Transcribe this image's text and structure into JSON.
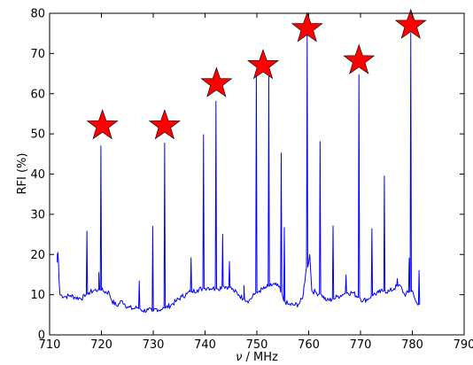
{
  "chart_data": {
    "type": "line",
    "xlabel_symbol": "ν",
    "xlabel_unit": " / MHz",
    "ylabel": "RFI (%)",
    "xlim": [
      710,
      790
    ],
    "ylim": [
      0,
      80
    ],
    "x_ticks": [
      710,
      720,
      730,
      740,
      750,
      760,
      770,
      780,
      790
    ],
    "y_ticks": [
      0,
      10,
      20,
      30,
      40,
      50,
      60,
      70,
      80
    ],
    "grid": false,
    "line_color": "#0000ff",
    "marker_color": "#ff0000",
    "baseline": [
      [
        711.5,
        20.0
      ],
      [
        711.8,
        14
      ],
      [
        712.0,
        10
      ],
      [
        713,
        9.5
      ],
      [
        714,
        9.8
      ],
      [
        715,
        9.3
      ],
      [
        716,
        9.1
      ],
      [
        716.8,
        9.5
      ],
      [
        717.5,
        10.5
      ],
      [
        718.5,
        11
      ],
      [
        719.5,
        11.3
      ],
      [
        720.5,
        10.8
      ],
      [
        721.5,
        10.5
      ],
      [
        722,
        8.5
      ],
      [
        723,
        7.2
      ],
      [
        724,
        8.5
      ],
      [
        725,
        7
      ],
      [
        726,
        6.5
      ],
      [
        727,
        6.8
      ],
      [
        728,
        6.0
      ],
      [
        729,
        6.2
      ],
      [
        729.8,
        5.8
      ],
      [
        730.5,
        6.5
      ],
      [
        731.5,
        6.3
      ],
      [
        732.5,
        6.8
      ],
      [
        733.5,
        7.5
      ],
      [
        734.5,
        8.5
      ],
      [
        735.5,
        9.5
      ],
      [
        736.5,
        10.2
      ],
      [
        737.5,
        10.8
      ],
      [
        738.5,
        11.2
      ],
      [
        739.5,
        11.5
      ],
      [
        740.5,
        11.8
      ],
      [
        741.5,
        11.6
      ],
      [
        742.5,
        11.4
      ],
      [
        743.5,
        12.2
      ],
      [
        744.5,
        12
      ],
      [
        745.5,
        11
      ],
      [
        746.5,
        10
      ],
      [
        747.5,
        9
      ],
      [
        748.5,
        8.5
      ],
      [
        749.5,
        10
      ],
      [
        750.5,
        11
      ],
      [
        751.5,
        11.5
      ],
      [
        752.5,
        12.2
      ],
      [
        753.5,
        12.5
      ],
      [
        754.5,
        11.5
      ],
      [
        755.2,
        8.5
      ],
      [
        756,
        7.6
      ],
      [
        757,
        7.4
      ],
      [
        758,
        7.6
      ],
      [
        758.8,
        9
      ],
      [
        759.4,
        15
      ],
      [
        760.2,
        20
      ],
      [
        760.6,
        11
      ],
      [
        761.5,
        10.5
      ],
      [
        762.5,
        10
      ],
      [
        763.5,
        8.5
      ],
      [
        764.5,
        8.8
      ],
      [
        765.5,
        9.5
      ],
      [
        766.5,
        10
      ],
      [
        767.5,
        10.5
      ],
      [
        768.5,
        10.5
      ],
      [
        769.5,
        9.5
      ],
      [
        770.5,
        8.5
      ],
      [
        771.5,
        9
      ],
      [
        772.5,
        10
      ],
      [
        773.5,
        10.5
      ],
      [
        774.5,
        11
      ],
      [
        775.5,
        10.8
      ],
      [
        776.5,
        11.5
      ],
      [
        777.5,
        12.5
      ],
      [
        778.5,
        10
      ],
      [
        779.2,
        10.5
      ],
      [
        780,
        11
      ],
      [
        780.5,
        9
      ],
      [
        781.0,
        7.5
      ]
    ],
    "spikes": [
      [
        711.6,
        20.5
      ],
      [
        717.2,
        25.8
      ],
      [
        719.5,
        15.5
      ],
      [
        719.9,
        47.0
      ],
      [
        727.3,
        13.4
      ],
      [
        729.9,
        27.0
      ],
      [
        732.2,
        47.7
      ],
      [
        737.3,
        19.2
      ],
      [
        739.7,
        49.8
      ],
      [
        742.1,
        58.1
      ],
      [
        743.4,
        25.0
      ],
      [
        744.7,
        18.2
      ],
      [
        747.5,
        12.3
      ],
      [
        749.9,
        65.5
      ],
      [
        752.3,
        64.5
      ],
      [
        754.7,
        45.2
      ],
      [
        755.3,
        26.7
      ],
      [
        759.7,
        75.0
      ],
      [
        762.2,
        48.1
      ],
      [
        764.7,
        27.1
      ],
      [
        767.2,
        14.9
      ],
      [
        769.7,
        64.7
      ],
      [
        772.2,
        26.4
      ],
      [
        774.6,
        39.5
      ],
      [
        777.1,
        14.0
      ],
      [
        779.4,
        19.1
      ],
      [
        779.7,
        75.1
      ],
      [
        781.3,
        16.0
      ]
    ],
    "star_markers": [
      [
        720.2,
        52.0
      ],
      [
        732.2,
        52.0
      ],
      [
        742.2,
        62.5
      ],
      [
        751.2,
        67.0
      ],
      [
        759.7,
        76.2
      ],
      [
        769.7,
        68.2
      ],
      [
        779.7,
        77.0
      ]
    ]
  }
}
